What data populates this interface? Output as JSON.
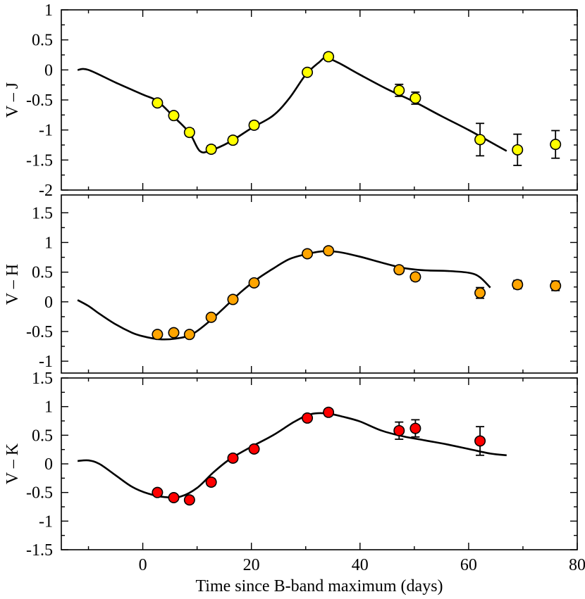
{
  "chart_data": [
    {
      "type": "scatter",
      "panel": "top",
      "ylabel": "V – J",
      "ylim": [
        -2,
        1
      ],
      "yticks": [
        -2,
        -1.5,
        -1,
        -0.5,
        0,
        0.5,
        1
      ],
      "xlim": [
        -15,
        80
      ],
      "marker_color": "#ffff00",
      "points": [
        {
          "x": 2.7,
          "y": -0.55,
          "err": 0.05
        },
        {
          "x": 5.7,
          "y": -0.76,
          "err": 0.05
        },
        {
          "x": 8.6,
          "y": -1.04,
          "err": 0.06
        },
        {
          "x": 12.6,
          "y": -1.32,
          "err": 0.06
        },
        {
          "x": 16.6,
          "y": -1.17,
          "err": 0.06
        },
        {
          "x": 20.5,
          "y": -0.92,
          "err": 0.06
        },
        {
          "x": 30.3,
          "y": -0.04,
          "err": 0.05
        },
        {
          "x": 34.2,
          "y": 0.22,
          "err": 0.06
        },
        {
          "x": 47.2,
          "y": -0.34,
          "err": 0.1
        },
        {
          "x": 50.2,
          "y": -0.47,
          "err": 0.1
        },
        {
          "x": 62.1,
          "y": -1.16,
          "err": 0.27
        },
        {
          "x": 69.0,
          "y": -1.33,
          "err": 0.26
        },
        {
          "x": 76.0,
          "y": -1.24,
          "err": 0.23
        }
      ],
      "model": [
        [
          -12,
          0
        ],
        [
          -10,
          0
        ],
        [
          -5,
          -0.21
        ],
        [
          0,
          -0.41
        ],
        [
          2.7,
          -0.52
        ],
        [
          5.7,
          -0.78
        ],
        [
          8.6,
          -1.05
        ],
        [
          10.5,
          -1.35
        ],
        [
          12.5,
          -1.34
        ],
        [
          16,
          -1.2
        ],
        [
          20,
          -0.97
        ],
        [
          24,
          -0.76
        ],
        [
          27,
          -0.47
        ],
        [
          30,
          -0.08
        ],
        [
          32.5,
          0.13
        ],
        [
          33.7,
          0.2
        ],
        [
          36,
          0.12
        ],
        [
          40,
          -0.08
        ],
        [
          45,
          -0.32
        ],
        [
          50,
          -0.53
        ],
        [
          55,
          -0.77
        ],
        [
          60,
          -1.0
        ],
        [
          65,
          -1.25
        ],
        [
          67,
          -1.35
        ]
      ]
    },
    {
      "type": "scatter",
      "panel": "middle",
      "ylabel": "V – H",
      "ylim": [
        -1.2,
        1.8
      ],
      "yticks": [
        -1,
        -0.5,
        0,
        0.5,
        1,
        1.5
      ],
      "xlim": [
        -15,
        80
      ],
      "marker_color": "#ffa500",
      "points": [
        {
          "x": 2.7,
          "y": -0.55,
          "err": 0.05
        },
        {
          "x": 5.7,
          "y": -0.52,
          "err": 0.05
        },
        {
          "x": 8.6,
          "y": -0.55,
          "err": 0.05
        },
        {
          "x": 12.6,
          "y": -0.26,
          "err": 0.05
        },
        {
          "x": 16.6,
          "y": 0.04,
          "err": 0.05
        },
        {
          "x": 20.5,
          "y": 0.32,
          "err": 0.05
        },
        {
          "x": 30.3,
          "y": 0.81,
          "err": 0.05
        },
        {
          "x": 34.2,
          "y": 0.86,
          "err": 0.05
        },
        {
          "x": 47.2,
          "y": 0.54,
          "err": 0.06
        },
        {
          "x": 50.2,
          "y": 0.42,
          "err": 0.06
        },
        {
          "x": 62.1,
          "y": 0.15,
          "err": 0.09
        },
        {
          "x": 69.0,
          "y": 0.29,
          "err": 0.07
        },
        {
          "x": 76.0,
          "y": 0.27,
          "err": 0.08
        }
      ],
      "model": [
        [
          -12,
          0.03
        ],
        [
          -10,
          -0.07
        ],
        [
          -8,
          -0.2
        ],
        [
          -5,
          -0.38
        ],
        [
          -2,
          -0.52
        ],
        [
          0,
          -0.58
        ],
        [
          3,
          -0.63
        ],
        [
          6,
          -0.62
        ],
        [
          9,
          -0.55
        ],
        [
          12,
          -0.35
        ],
        [
          15,
          -0.1
        ],
        [
          18,
          0.16
        ],
        [
          21,
          0.38
        ],
        [
          24,
          0.56
        ],
        [
          27,
          0.72
        ],
        [
          30,
          0.8
        ],
        [
          33,
          0.85
        ],
        [
          36,
          0.84
        ],
        [
          40,
          0.76
        ],
        [
          44,
          0.66
        ],
        [
          48,
          0.57
        ],
        [
          52,
          0.53
        ],
        [
          56,
          0.52
        ],
        [
          60,
          0.49
        ],
        [
          62,
          0.42
        ],
        [
          64,
          0.24
        ]
      ]
    },
    {
      "type": "scatter",
      "panel": "bottom",
      "ylabel": "V – K",
      "ylim": [
        -1.5,
        1.5
      ],
      "yticks": [
        -1.5,
        -1,
        -0.5,
        0,
        0.5,
        1,
        1.5
      ],
      "xlim": [
        -15,
        80
      ],
      "xticks": [
        0,
        20,
        40,
        60,
        80
      ],
      "xlabel": "Time since B-band maximum (days)",
      "marker_color": "#ff0000",
      "points": [
        {
          "x": 2.7,
          "y": -0.5,
          "err": 0.05
        },
        {
          "x": 5.7,
          "y": -0.59,
          "err": 0.05
        },
        {
          "x": 8.6,
          "y": -0.63,
          "err": 0.06
        },
        {
          "x": 12.6,
          "y": -0.32,
          "err": 0.06
        },
        {
          "x": 16.6,
          "y": 0.1,
          "err": 0.06
        },
        {
          "x": 20.5,
          "y": 0.26,
          "err": 0.06
        },
        {
          "x": 30.3,
          "y": 0.8,
          "err": 0.05
        },
        {
          "x": 34.2,
          "y": 0.9,
          "err": 0.06
        },
        {
          "x": 47.2,
          "y": 0.58,
          "err": 0.15
        },
        {
          "x": 50.2,
          "y": 0.62,
          "err": 0.15
        },
        {
          "x": 62.1,
          "y": 0.4,
          "err": 0.25
        }
      ],
      "model": [
        [
          -12,
          0.05
        ],
        [
          -10,
          0.06
        ],
        [
          -8,
          0.0
        ],
        [
          -5,
          -0.2
        ],
        [
          -2,
          -0.4
        ],
        [
          1,
          -0.52
        ],
        [
          4,
          -0.58
        ],
        [
          7,
          -0.57
        ],
        [
          10,
          -0.42
        ],
        [
          13,
          -0.15
        ],
        [
          16,
          0.08
        ],
        [
          20,
          0.3
        ],
        [
          24,
          0.5
        ],
        [
          28,
          0.74
        ],
        [
          31,
          0.87
        ],
        [
          34,
          0.88
        ],
        [
          37,
          0.82
        ],
        [
          40,
          0.74
        ],
        [
          44,
          0.58
        ],
        [
          48,
          0.48
        ],
        [
          52,
          0.41
        ],
        [
          56,
          0.34
        ],
        [
          60,
          0.26
        ],
        [
          64,
          0.18
        ],
        [
          67,
          0.15
        ]
      ]
    }
  ]
}
